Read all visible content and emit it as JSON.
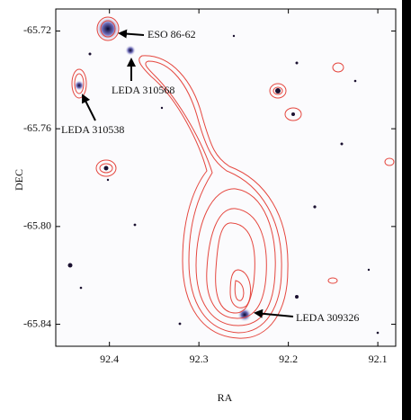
{
  "chart_data": {
    "type": "image",
    "xlabel": "RA",
    "ylabel": "DEC",
    "xlim": [
      92.46,
      92.08
    ],
    "ylim": [
      -65.849,
      -65.711
    ],
    "xticks": [
      92.4,
      92.3,
      92.2,
      92.1
    ],
    "yticks": [
      -65.72,
      -65.76,
      {
        "value": -65.8,
        "label": "-65.80"
      },
      -65.84
    ],
    "annotations": [
      "ESO 86-62",
      "LEDA 310568",
      "LEDA 310538",
      "LEDA 309326"
    ],
    "contour_color": "#e5473f"
  }
}
